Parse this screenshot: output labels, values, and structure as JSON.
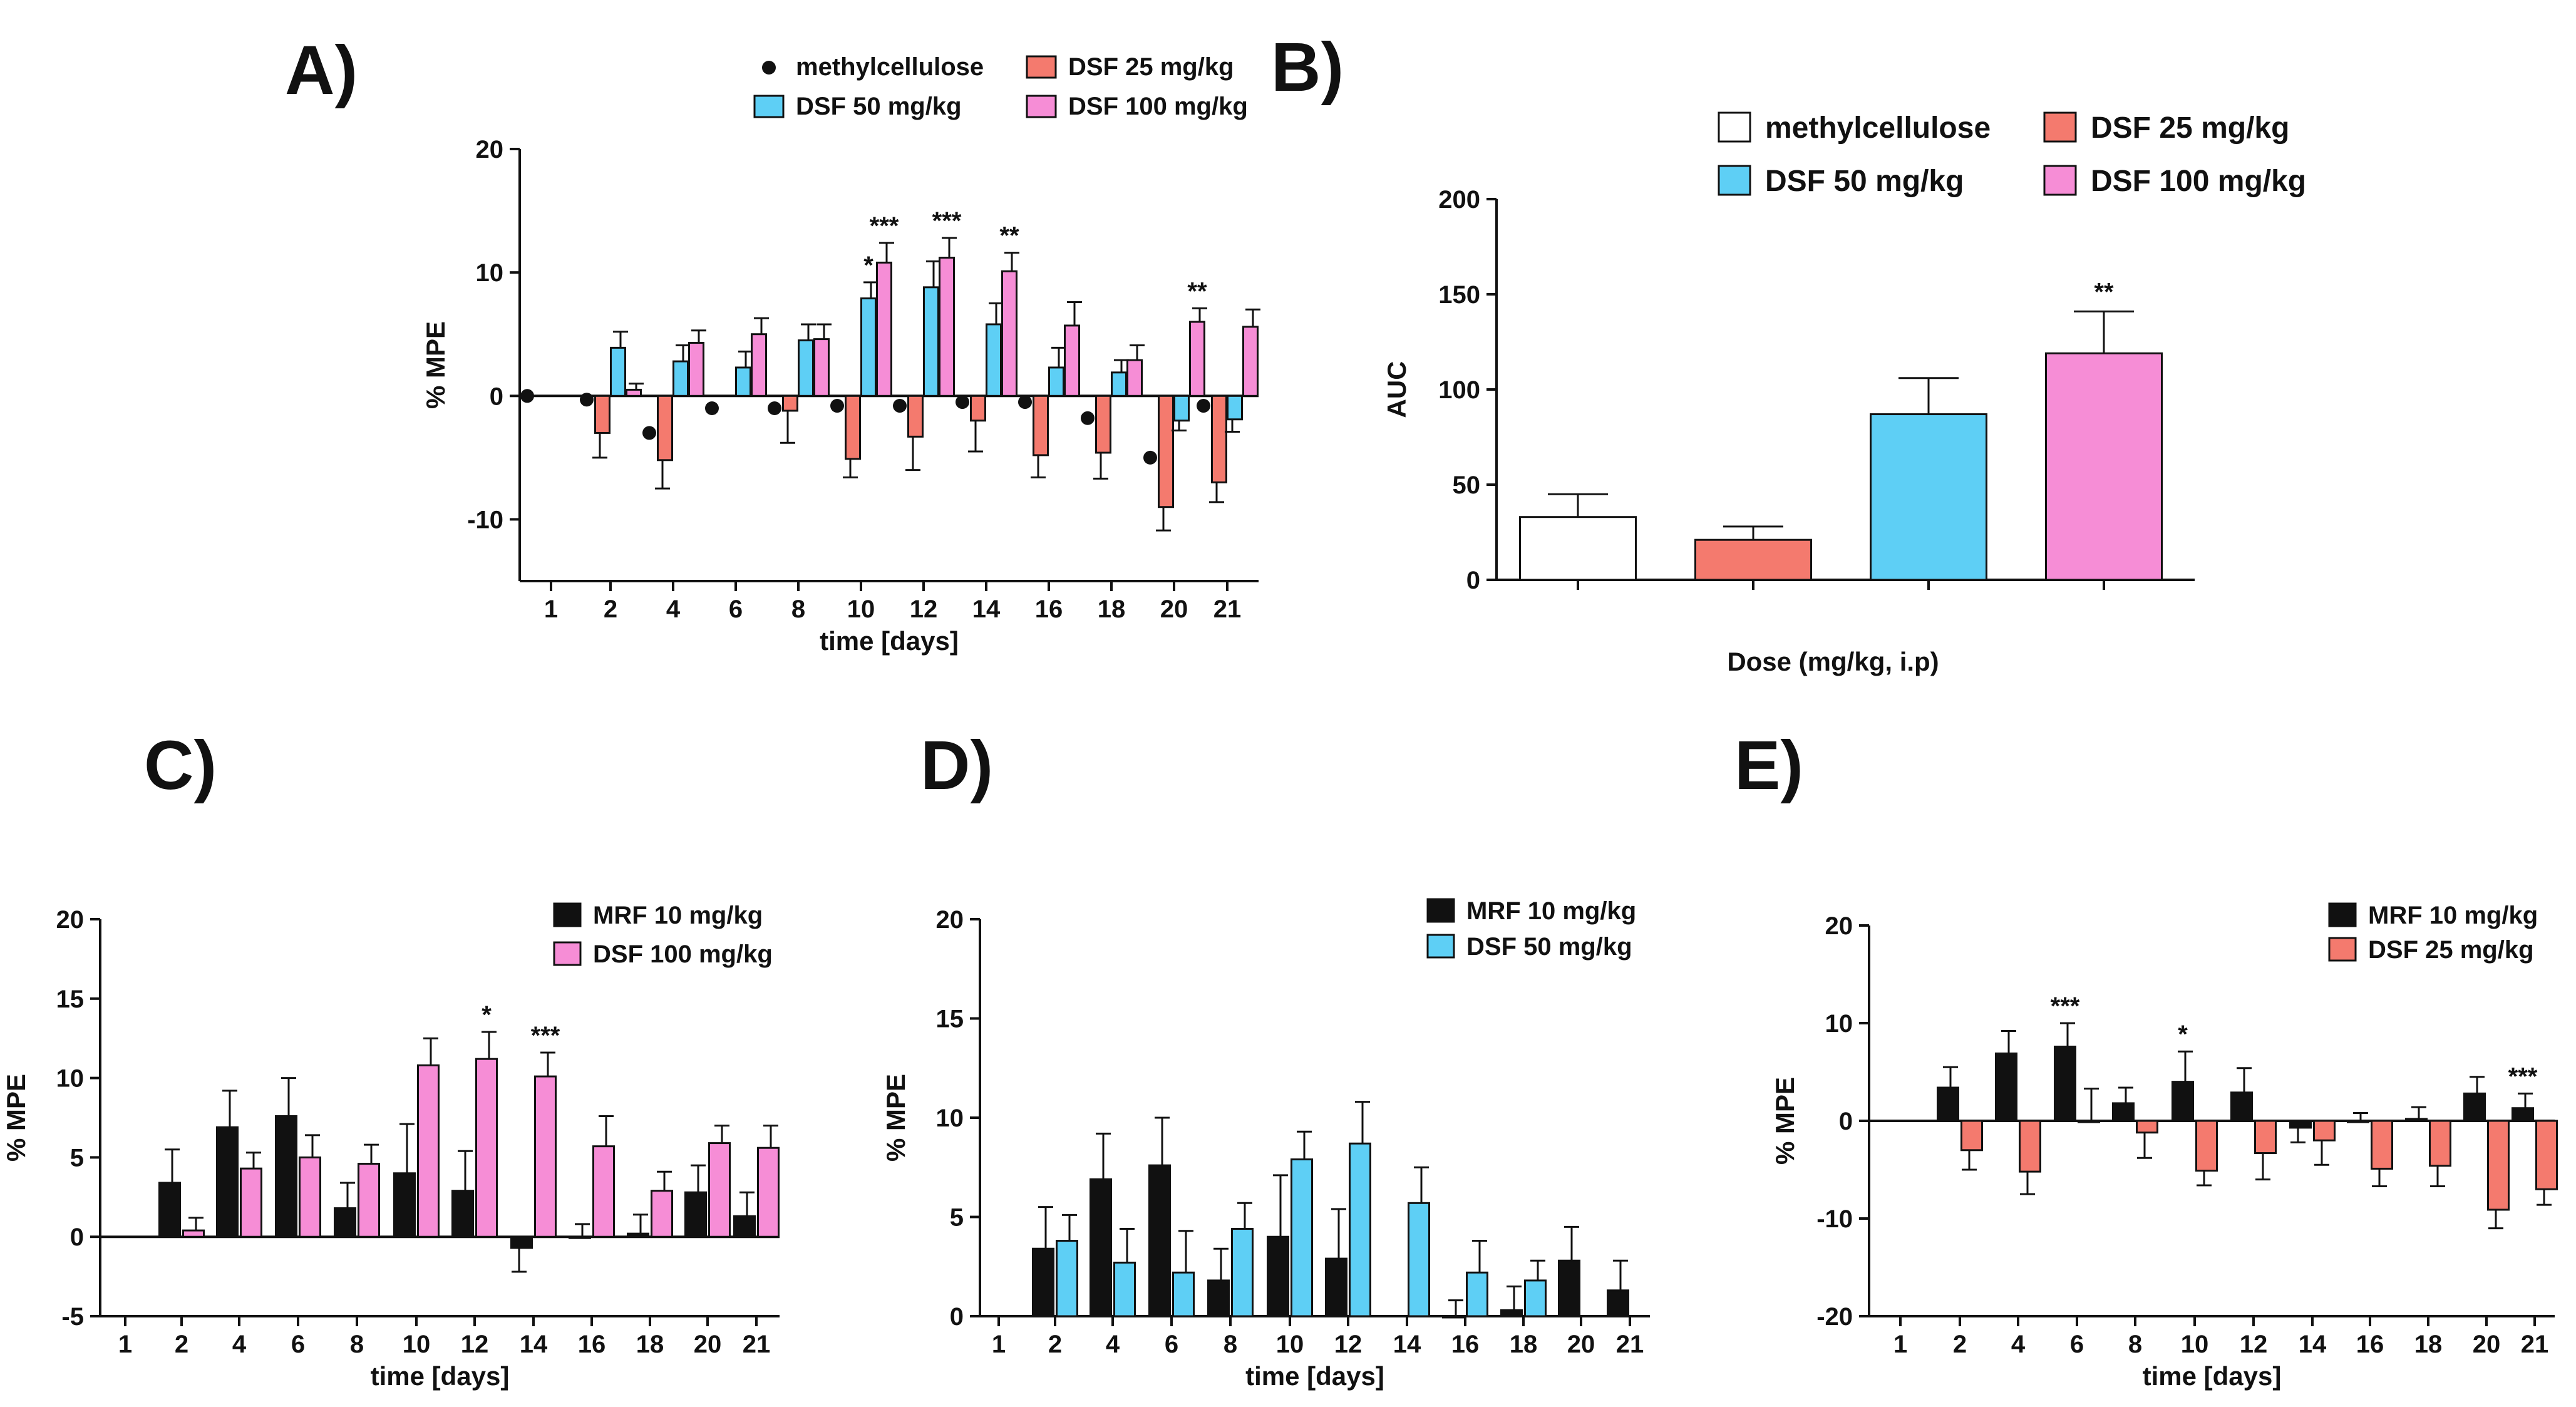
{
  "colors": {
    "methylcellulose": "#ffffff",
    "dsf25": "#f47a6e",
    "dsf50": "#5ecff5",
    "dsf100": "#f68dd6",
    "mrf10": "#111111",
    "mc_marker": "#111111"
  },
  "chart_data": [
    {
      "id": "A",
      "panel_label": "A)",
      "type": "bar",
      "title": "",
      "xlabel": "time [days]",
      "ylabel": "% MPE",
      "ylim": [
        -15,
        20
      ],
      "yticks": [
        -10,
        0,
        10,
        20
      ],
      "categories": [
        "1",
        "2",
        "4",
        "6",
        "8",
        "10",
        "12",
        "14",
        "16",
        "18",
        "20",
        "21"
      ],
      "legend_position": "top",
      "legend": [
        "methylcellulose",
        "DSF 25 mg/kg",
        "DSF 50 mg/kg",
        "DSF 100 mg/kg"
      ],
      "series": [
        {
          "name": "methylcellulose",
          "style": "dot",
          "color_key": "mc_marker",
          "values": [
            0,
            -0.3,
            -3,
            -1,
            -1,
            -0.8,
            -0.8,
            -0.5,
            -0.5,
            -1.8,
            -5,
            -0.8
          ],
          "errors": [
            0,
            0,
            0,
            0,
            0,
            0,
            0,
            0,
            0,
            0,
            0,
            0
          ]
        },
        {
          "name": "DSF 25 mg/kg",
          "style": "bar",
          "color_key": "dsf25",
          "values": [
            0,
            -3,
            -5.2,
            0,
            -1.2,
            -5.1,
            -3.3,
            -2,
            -4.8,
            -4.6,
            -9,
            -7
          ],
          "errors": [
            0,
            2,
            2.3,
            0,
            2.6,
            1.5,
            2.7,
            2.5,
            1.8,
            2.1,
            1.9,
            1.6
          ]
        },
        {
          "name": "DSF 50 mg/kg",
          "style": "bar",
          "color_key": "dsf50",
          "values": [
            0,
            3.9,
            2.8,
            2.3,
            4.5,
            7.9,
            8.8,
            5.8,
            2.3,
            1.9,
            -2,
            -1.9
          ],
          "errors": [
            0,
            1.3,
            1.3,
            1.3,
            1.3,
            1.3,
            2.1,
            1.7,
            1.6,
            1,
            0.8,
            1
          ]
        },
        {
          "name": "DSF 100 mg/kg",
          "style": "bar",
          "color_key": "dsf100",
          "values": [
            0,
            0.5,
            4.3,
            5,
            4.6,
            10.8,
            11.2,
            10.1,
            5.7,
            2.9,
            6,
            5.6
          ],
          "errors": [
            0,
            0.5,
            1,
            1.3,
            1.2,
            1.6,
            1.6,
            1.5,
            1.9,
            1.2,
            1.1,
            1.4
          ]
        }
      ],
      "annotations": [
        {
          "category": "10",
          "series": "DSF 50 mg/kg",
          "text": "*"
        },
        {
          "category": "10",
          "series": "DSF 100 mg/kg",
          "text": "***"
        },
        {
          "category": "12",
          "series": "DSF 100 mg/kg",
          "text": "***"
        },
        {
          "category": "14",
          "series": "DSF 100 mg/kg",
          "text": "**"
        },
        {
          "category": "20",
          "series": "DSF 100 mg/kg",
          "text": "**"
        }
      ]
    },
    {
      "id": "B",
      "panel_label": "B)",
      "type": "bar",
      "title": "",
      "xlabel": "Dose (mg/kg, i.p)",
      "ylabel": "AUC",
      "ylim": [
        0,
        200
      ],
      "yticks": [
        0,
        50,
        100,
        150,
        200
      ],
      "categories": [
        "methylcellulose",
        "DSF 25 mg/kg",
        "DSF 50 mg/kg",
        "DSF 100 mg/kg"
      ],
      "legend_position": "top",
      "legend": [
        "methylcellulose",
        "DSF 25 mg/kg",
        "DSF 50 mg/kg",
        "DSF 100 mg/kg"
      ],
      "series": [
        {
          "name": "AUC",
          "values": [
            33,
            21,
            87,
            119
          ],
          "errors": [
            12,
            7,
            19,
            22
          ],
          "color_keys": [
            "methylcellulose",
            "dsf25",
            "dsf50",
            "dsf100"
          ]
        }
      ],
      "annotations": [
        {
          "category": "DSF 100 mg/kg",
          "series": "AUC",
          "text": "**"
        }
      ]
    },
    {
      "id": "C",
      "panel_label": "C)",
      "type": "bar",
      "title": "",
      "xlabel": "time [days]",
      "ylabel": "% MPE",
      "ylim": [
        -5,
        20
      ],
      "yticks": [
        -5,
        0,
        5,
        10,
        15,
        20
      ],
      "categories": [
        "1",
        "2",
        "4",
        "6",
        "8",
        "10",
        "12",
        "14",
        "16",
        "18",
        "20",
        "21"
      ],
      "legend_position": "top-right",
      "legend": [
        "MRF 10 mg/kg",
        "DSF 100 mg/kg"
      ],
      "series": [
        {
          "name": "MRF 10 mg/kg",
          "style": "bar",
          "color_key": "mrf10",
          "values": [
            0,
            3.4,
            6.9,
            7.6,
            1.8,
            4,
            2.9,
            -0.7,
            0,
            0.2,
            2.8,
            1.3
          ],
          "errors": [
            0,
            2.1,
            2.3,
            2.4,
            1.6,
            3.1,
            2.5,
            1.5,
            0.8,
            1.2,
            1.7,
            1.5
          ]
        },
        {
          "name": "DSF 100 mg/kg",
          "style": "bar",
          "color_key": "dsf100",
          "values": [
            0,
            0.4,
            4.3,
            5,
            4.6,
            10.8,
            11.2,
            10.1,
            5.7,
            2.9,
            5.9,
            5.6
          ],
          "errors": [
            0,
            0.8,
            1,
            1.4,
            1.2,
            1.7,
            1.7,
            1.5,
            1.9,
            1.2,
            1.1,
            1.4
          ]
        }
      ],
      "annotations": [
        {
          "category": "12",
          "series": "DSF 100 mg/kg",
          "text": "*"
        },
        {
          "category": "14",
          "series": "DSF 100 mg/kg",
          "text": "***"
        }
      ]
    },
    {
      "id": "D",
      "panel_label": "D)",
      "type": "bar",
      "title": "",
      "xlabel": "time [days]",
      "ylabel": "% MPE",
      "ylim": [
        0,
        20
      ],
      "yticks": [
        0,
        5,
        10,
        15,
        20
      ],
      "categories": [
        "1",
        "2",
        "4",
        "6",
        "8",
        "10",
        "12",
        "14",
        "16",
        "18",
        "20",
        "21"
      ],
      "legend_position": "top-right",
      "legend": [
        "MRF 10 mg/kg",
        "DSF 50 mg/kg"
      ],
      "series": [
        {
          "name": "MRF 10 mg/kg",
          "style": "bar",
          "color_key": "mrf10",
          "values": [
            0,
            3.4,
            6.9,
            7.6,
            1.8,
            4,
            2.9,
            0,
            0,
            0.3,
            2.8,
            1.3
          ],
          "errors": [
            0,
            2.1,
            2.3,
            2.4,
            1.6,
            3.1,
            2.5,
            0,
            0.8,
            1.2,
            1.7,
            1.5
          ]
        },
        {
          "name": "DSF 50 mg/kg",
          "style": "bar",
          "color_key": "dsf50",
          "values": [
            0,
            3.8,
            2.7,
            2.2,
            4.4,
            7.9,
            8.7,
            5.7,
            2.2,
            1.8,
            0,
            0
          ],
          "errors": [
            0,
            1.3,
            1.7,
            2.1,
            1.3,
            1.4,
            2.1,
            1.8,
            1.6,
            1,
            0,
            0
          ]
        }
      ],
      "annotations": []
    },
    {
      "id": "E",
      "panel_label": "E)",
      "type": "bar",
      "title": "",
      "xlabel": "time [days]",
      "ylabel": "% MPE",
      "ylim": [
        -20,
        20
      ],
      "yticks": [
        -20,
        -10,
        0,
        10,
        20
      ],
      "categories": [
        "1",
        "2",
        "4",
        "6",
        "8",
        "10",
        "12",
        "14",
        "16",
        "18",
        "20",
        "21"
      ],
      "legend_position": "top-right",
      "legend": [
        "MRF 10 mg/kg",
        "DSF 25 mg/kg"
      ],
      "series": [
        {
          "name": "MRF 10 mg/kg",
          "style": "bar",
          "color_key": "mrf10",
          "values": [
            0,
            3.4,
            6.9,
            7.6,
            1.8,
            4,
            2.9,
            -0.7,
            0,
            0.2,
            2.8,
            1.3
          ],
          "errors": [
            0,
            2.1,
            2.3,
            2.4,
            1.6,
            3.1,
            2.5,
            1.5,
            0.8,
            1.2,
            1.7,
            1.5
          ]
        },
        {
          "name": "DSF 25 mg/kg",
          "style": "bar",
          "color_key": "dsf25",
          "values": [
            0,
            -3,
            -5.2,
            0,
            -1.2,
            -5.1,
            -3.3,
            -2,
            -4.9,
            -4.6,
            -9.1,
            -7
          ],
          "errors": [
            0,
            2,
            2.3,
            3.3,
            2.6,
            1.5,
            2.7,
            2.5,
            1.8,
            2.1,
            1.9,
            1.6
          ]
        }
      ],
      "annotations": [
        {
          "category": "6",
          "series": "MRF 10 mg/kg",
          "text": "***"
        },
        {
          "category": "10",
          "series": "MRF 10 mg/kg",
          "text": "*"
        },
        {
          "category": "21",
          "series": "MRF 10 mg/kg",
          "text": "***"
        }
      ]
    }
  ]
}
